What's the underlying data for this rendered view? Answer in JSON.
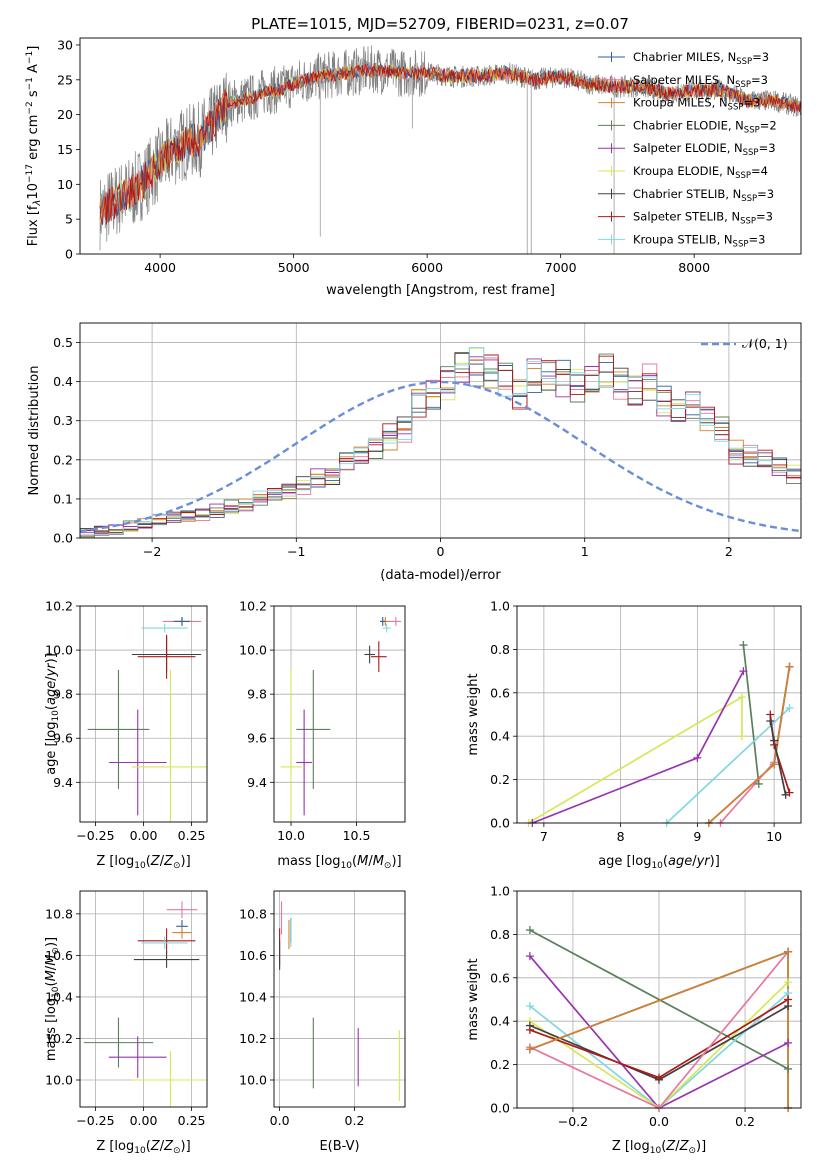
{
  "figure": {
    "title": "PLATE=1015, MJD=52709, FIBERID=0231, z=0.07"
  },
  "colors": {
    "Chabrier MILES": "#2f5f9e",
    "Salpeter MILES": "#e8779d",
    "Kroupa MILES": "#d4822f",
    "Chabrier ELODIE": "#5a7f5a",
    "Salpeter ELODIE": "#9933b0",
    "Kroupa ELODIE": "#d4e85a",
    "Chabrier STELIB": "#404040",
    "Salpeter STELIB": "#b01818",
    "Kroupa STELIB": "#7fd8e0",
    "data": "#808080",
    "normal": "#6a8fd8"
  },
  "chart_data": [
    {
      "id": "spectrum",
      "type": "line",
      "xlabel": "wavelength [Angstrom, rest frame]",
      "ylabel": "Flux [f_λ10^-17 erg cm^-2 s^-1 A^-1]",
      "xlim": [
        3400,
        8800
      ],
      "ylim": [
        0,
        31
      ],
      "xticks": [
        4000,
        5000,
        6000,
        7000,
        8000
      ],
      "yticks": [
        0,
        5,
        10,
        15,
        20,
        25,
        30
      ],
      "envelope_wavelength": [
        3550,
        3700,
        3800,
        3900,
        4000,
        4100,
        4200,
        4300,
        4400,
        4500,
        4600,
        4700,
        4800,
        4900,
        5000,
        5200,
        5400,
        5600,
        5800,
        6000,
        6200,
        6400,
        6600,
        6800,
        7000,
        7200,
        7400,
        7600,
        7800,
        8000,
        8200,
        8400,
        8600,
        8800
      ],
      "envelope_flux": [
        6,
        8,
        9,
        11,
        13,
        15,
        16,
        16.5,
        19,
        21.5,
        22,
        22.5,
        23.5,
        23.5,
        24.5,
        25.5,
        26,
        26.5,
        26,
        26,
        25.5,
        25.5,
        26,
        25,
        25.5,
        24.5,
        24,
        24,
        23,
        23.5,
        23.5,
        22,
        22,
        21
      ],
      "legend": [
        {
          "label": "Chabrier MILES, N",
          "sub": "SSP",
          "suffix": "=3"
        },
        {
          "label": "Salpeter MILES, N",
          "sub": "SSP",
          "suffix": "=3"
        },
        {
          "label": "Kroupa MILES, N",
          "sub": "SSP",
          "suffix": "=3"
        },
        {
          "label": "Chabrier ELODIE, N",
          "sub": "SSP",
          "suffix": "=2"
        },
        {
          "label": "Salpeter ELODIE, N",
          "sub": "SSP",
          "suffix": "=3"
        },
        {
          "label": "Kroupa ELODIE, N",
          "sub": "SSP",
          "suffix": "=4"
        },
        {
          "label": "Chabrier STELIB, N",
          "sub": "SSP",
          "suffix": "=3"
        },
        {
          "label": "Salpeter STELIB, N",
          "sub": "SSP",
          "suffix": "=3"
        },
        {
          "label": "Kroupa STELIB, N",
          "sub": "SSP",
          "suffix": "=3"
        }
      ]
    },
    {
      "id": "residuals",
      "type": "step",
      "xlabel": "(data-model)/error",
      "ylabel": "Normed distribution",
      "xlim": [
        -2.5,
        2.5
      ],
      "ylim": [
        0,
        0.55
      ],
      "xticks": [
        -2,
        -1,
        0,
        1,
        2
      ],
      "yticks": [
        0.0,
        0.1,
        0.2,
        0.3,
        0.4,
        0.5
      ],
      "legend": "𝒩(0, 1)",
      "bin_width": 0.1,
      "x_start": -2.5,
      "base_values": [
        0.012,
        0.018,
        0.022,
        0.03,
        0.035,
        0.045,
        0.05,
        0.055,
        0.06,
        0.07,
        0.08,
        0.085,
        0.1,
        0.11,
        0.12,
        0.135,
        0.155,
        0.16,
        0.2,
        0.21,
        0.23,
        0.26,
        0.28,
        0.35,
        0.37,
        0.4,
        0.44,
        0.44,
        0.43,
        0.41,
        0.37,
        0.42,
        0.42,
        0.41,
        0.39,
        0.4,
        0.43,
        0.4,
        0.38,
        0.4,
        0.35,
        0.32,
        0.34,
        0.31,
        0.28,
        0.22,
        0.21,
        0.2,
        0.18,
        0.16,
        0.14,
        0.11,
        0.1,
        0.09,
        0.08,
        0.07,
        0.06,
        0.05,
        0.04,
        0.035,
        0.02,
        0.015
      ]
    },
    {
      "id": "age_vs_Z",
      "type": "errorbar",
      "xlabel": "Z [log10(Z/Z☉)]",
      "ylabel": "age  [log10(age/yr)]",
      "xlim": [
        -0.33,
        0.33
      ],
      "ylim": [
        9.22,
        10.2
      ],
      "xticks": [
        -0.25,
        0.0,
        0.25
      ],
      "yticks": [
        9.4,
        9.6,
        9.8,
        10.0,
        10.2
      ],
      "points": [
        {
          "model": "Kroupa STELIB",
          "x": 0.11,
          "y": 10.1,
          "xerr": 0.12,
          "yerr": 0.02
        },
        {
          "model": "Salpeter MILES",
          "x": 0.2,
          "y": 10.13,
          "xerr": 0.1,
          "yerr": 0.02
        },
        {
          "model": "Kroupa MILES",
          "x": 0.2,
          "y": 10.13,
          "xerr": 0.05,
          "yerr": 0.02
        },
        {
          "model": "Chabrier MILES",
          "x": 0.2,
          "y": 10.13,
          "xerr": 0.04,
          "yerr": 0.02
        },
        {
          "model": "Chabrier STELIB",
          "x": 0.12,
          "y": 9.98,
          "xerr": 0.18,
          "yerr": 0.08
        },
        {
          "model": "Salpeter STELIB",
          "x": 0.12,
          "y": 9.97,
          "xerr": 0.15,
          "yerr": 0.1
        },
        {
          "model": "Chabrier ELODIE",
          "x": -0.13,
          "y": 9.64,
          "xerr": 0.16,
          "yerr": 0.27
        },
        {
          "model": "Salpeter ELODIE",
          "x": -0.03,
          "y": 9.49,
          "xerr": 0.15,
          "yerr": 0.24
        },
        {
          "model": "Kroupa ELODIE",
          "x": 0.14,
          "y": 9.47,
          "xerr": 0.2,
          "yerr": 0.44
        }
      ]
    },
    {
      "id": "age_vs_mass",
      "type": "errorbar",
      "xlabel": "mass [log10(M/M☉)]",
      "ylabel": "",
      "xlim": [
        9.87,
        10.87
      ],
      "ylim": [
        9.22,
        10.2
      ],
      "xticks": [
        10.0,
        10.5
      ],
      "yticks": [
        9.4,
        9.6,
        9.8,
        10.0,
        10.2
      ],
      "points": [
        {
          "model": "Kroupa STELIB",
          "x": 10.73,
          "y": 10.1,
          "xerr": 0.03,
          "yerr": 0.02
        },
        {
          "model": "Salpeter MILES",
          "x": 10.8,
          "y": 10.13,
          "xerr": 0.04,
          "yerr": 0.02
        },
        {
          "model": "Kroupa MILES",
          "x": 10.72,
          "y": 10.13,
          "xerr": 0.04,
          "yerr": 0.02
        },
        {
          "model": "Chabrier MILES",
          "x": 10.7,
          "y": 10.13,
          "xerr": 0.02,
          "yerr": 0.02
        },
        {
          "model": "Chabrier STELIB",
          "x": 10.6,
          "y": 9.98,
          "xerr": 0.04,
          "yerr": 0.04
        },
        {
          "model": "Salpeter STELIB",
          "x": 10.67,
          "y": 9.97,
          "xerr": 0.06,
          "yerr": 0.07
        },
        {
          "model": "Chabrier ELODIE",
          "x": 10.17,
          "y": 9.64,
          "xerr": 0.13,
          "yerr": 0.27
        },
        {
          "model": "Salpeter ELODIE",
          "x": 10.1,
          "y": 9.49,
          "xerr": 0.06,
          "yerr": 0.24
        },
        {
          "model": "Kroupa ELODIE",
          "x": 10.0,
          "y": 9.47,
          "xerr": 0.08,
          "yerr": 0.44
        }
      ]
    },
    {
      "id": "weight_vs_age",
      "type": "line",
      "xlabel": "age  [log10(age/yr)]",
      "ylabel": "mass weight",
      "xlim": [
        6.65,
        10.35
      ],
      "ylim": [
        0,
        1
      ],
      "xticks": [
        7,
        8,
        9,
        10
      ],
      "yticks": [
        0.0,
        0.2,
        0.4,
        0.6,
        0.8,
        1.0
      ],
      "series": [
        {
          "model": "Kroupa ELODIE",
          "x": [
            6.8,
            9.58,
            9.58
          ],
          "y": [
            0.0,
            0.58,
            0.4
          ]
        },
        {
          "model": "Salpeter ELODIE",
          "x": [
            6.85,
            9.0,
            9.6
          ],
          "y": [
            0.0,
            0.3,
            0.7
          ]
        },
        {
          "model": "Chabrier ELODIE",
          "x": [
            9.6,
            9.8
          ],
          "y": [
            0.82,
            0.18
          ]
        },
        {
          "model": "Kroupa STELIB",
          "x": [
            8.6,
            10.2
          ],
          "y": [
            0.0,
            0.53
          ]
        },
        {
          "model": "Salpeter MILES",
          "x": [
            9.3,
            10.0,
            10.2
          ],
          "y": [
            0.0,
            0.28,
            0.72
          ]
        },
        {
          "model": "Chabrier MILES",
          "x": [
            9.15,
            10.0,
            10.2
          ],
          "y": [
            0.0,
            0.27,
            0.72
          ]
        },
        {
          "model": "Kroupa MILES",
          "x": [
            9.15,
            10.0,
            10.2
          ],
          "y": [
            0.0,
            0.27,
            0.72
          ]
        },
        {
          "model": "Salpeter STELIB",
          "x": [
            9.95,
            10.0,
            10.2
          ],
          "y": [
            0.5,
            0.36,
            0.14
          ]
        },
        {
          "model": "Chabrier STELIB",
          "x": [
            9.95,
            10.0,
            10.15
          ],
          "y": [
            0.47,
            0.38,
            0.13
          ]
        }
      ]
    },
    {
      "id": "mass_vs_Z",
      "type": "errorbar",
      "xlabel": "Z [log10(Z/Z☉)]",
      "ylabel": "mass [log10(M/M☉)]",
      "xlim": [
        -0.33,
        0.33
      ],
      "ylim": [
        9.87,
        10.91
      ],
      "xticks": [
        -0.25,
        0.0,
        0.25
      ],
      "yticks": [
        10.0,
        10.2,
        10.4,
        10.6,
        10.8
      ],
      "points": [
        {
          "model": "Salpeter MILES",
          "x": 0.2,
          "y": 10.82,
          "xerr": 0.08,
          "yerr": 0.04
        },
        {
          "model": "Chabrier MILES",
          "x": 0.2,
          "y": 10.74,
          "xerr": 0.03,
          "yerr": 0.03
        },
        {
          "model": "Kroupa MILES",
          "x": 0.2,
          "y": 10.71,
          "xerr": 0.05,
          "yerr": 0.03
        },
        {
          "model": "Salpeter STELIB",
          "x": 0.12,
          "y": 10.67,
          "xerr": 0.15,
          "yerr": 0.06
        },
        {
          "model": "Kroupa STELIB",
          "x": 0.11,
          "y": 10.66,
          "xerr": 0.12,
          "yerr": 0.03
        },
        {
          "model": "Chabrier STELIB",
          "x": 0.12,
          "y": 10.58,
          "xerr": 0.17,
          "yerr": 0.04
        },
        {
          "model": "Chabrier ELODIE",
          "x": -0.13,
          "y": 10.18,
          "xerr": 0.18,
          "yerr": 0.12
        },
        {
          "model": "Salpeter ELODIE",
          "x": -0.03,
          "y": 10.11,
          "xerr": 0.15,
          "yerr": 0.1
        },
        {
          "model": "Kroupa ELODIE",
          "x": 0.14,
          "y": 10.0,
          "xerr": 0.2,
          "yerr": 0.14
        }
      ]
    },
    {
      "id": "mass_vs_ebv",
      "type": "errorbar",
      "xlabel": "E(B-V)",
      "ylabel": "",
      "xlim": [
        -0.015,
        0.335
      ],
      "ylim": [
        9.87,
        10.91
      ],
      "xticks": [
        0.0,
        0.2
      ],
      "yticks": [
        10.0,
        10.2,
        10.4,
        10.6,
        10.8
      ],
      "points": [
        {
          "model": "Salpeter MILES",
          "x": 0.005,
          "y": 10.78,
          "xerr": 0,
          "yerr": 0.08
        },
        {
          "model": "Chabrier MILES",
          "x": 0.03,
          "y": 10.72,
          "xerr": 0,
          "yerr": 0.06
        },
        {
          "model": "Kroupa MILES",
          "x": 0.025,
          "y": 10.7,
          "xerr": 0,
          "yerr": 0.07
        },
        {
          "model": "Kroupa STELIB",
          "x": 0.03,
          "y": 10.71,
          "xerr": 0,
          "yerr": 0.07
        },
        {
          "model": "Salpeter STELIB",
          "x": 0.0,
          "y": 10.64,
          "xerr": 0,
          "yerr": 0.09
        },
        {
          "model": "Chabrier STELIB",
          "x": 0.0,
          "y": 10.6,
          "xerr": 0,
          "yerr": 0.07
        },
        {
          "model": "Chabrier ELODIE",
          "x": 0.09,
          "y": 10.13,
          "xerr": 0,
          "yerr": 0.17
        },
        {
          "model": "Salpeter ELODIE",
          "x": 0.21,
          "y": 10.11,
          "xerr": 0,
          "yerr": 0.14
        },
        {
          "model": "Kroupa ELODIE",
          "x": 0.32,
          "y": 10.07,
          "xerr": 0,
          "yerr": 0.17
        }
      ]
    },
    {
      "id": "weight_vs_Z",
      "type": "line",
      "xlabel": "Z [log10(Z/Z☉)]",
      "ylabel": "mass weight",
      "xlim": [
        -0.33,
        0.33
      ],
      "ylim": [
        0,
        1
      ],
      "xticks": [
        -0.2,
        0.0,
        0.2
      ],
      "yticks": [
        0.0,
        0.2,
        0.4,
        0.6,
        0.8,
        1.0
      ],
      "series": [
        {
          "model": "Chabrier ELODIE",
          "x": [
            -0.3,
            0.3
          ],
          "y": [
            0.82,
            0.18
          ]
        },
        {
          "model": "Salpeter ELODIE",
          "x": [
            -0.3,
            0.0,
            0.3
          ],
          "y": [
            0.7,
            0.0,
            0.3
          ]
        },
        {
          "model": "Kroupa STELIB",
          "x": [
            -0.3,
            0.0,
            0.3
          ],
          "y": [
            0.47,
            0.0,
            0.53
          ]
        },
        {
          "model": "Kroupa ELODIE",
          "x": [
            -0.3,
            0.0,
            0.3
          ],
          "y": [
            0.4,
            0.0,
            0.58
          ]
        },
        {
          "model": "Chabrier STELIB",
          "x": [
            -0.3,
            0.0,
            0.3
          ],
          "y": [
            0.38,
            0.13,
            0.47
          ]
        },
        {
          "model": "Salpeter STELIB",
          "x": [
            -0.3,
            0.0,
            0.3
          ],
          "y": [
            0.36,
            0.14,
            0.5
          ]
        },
        {
          "model": "Salpeter MILES",
          "x": [
            -0.3,
            0.0,
            0.3
          ],
          "y": [
            0.28,
            0.0,
            0.72
          ]
        },
        {
          "model": "Chabrier MILES",
          "x": [
            -0.3,
            0.3,
            0.3
          ],
          "y": [
            0.27,
            0.72,
            0.0
          ]
        },
        {
          "model": "Kroupa MILES",
          "x": [
            -0.3,
            0.3,
            0.3
          ],
          "y": [
            0.27,
            0.72,
            0.0
          ]
        }
      ]
    }
  ]
}
